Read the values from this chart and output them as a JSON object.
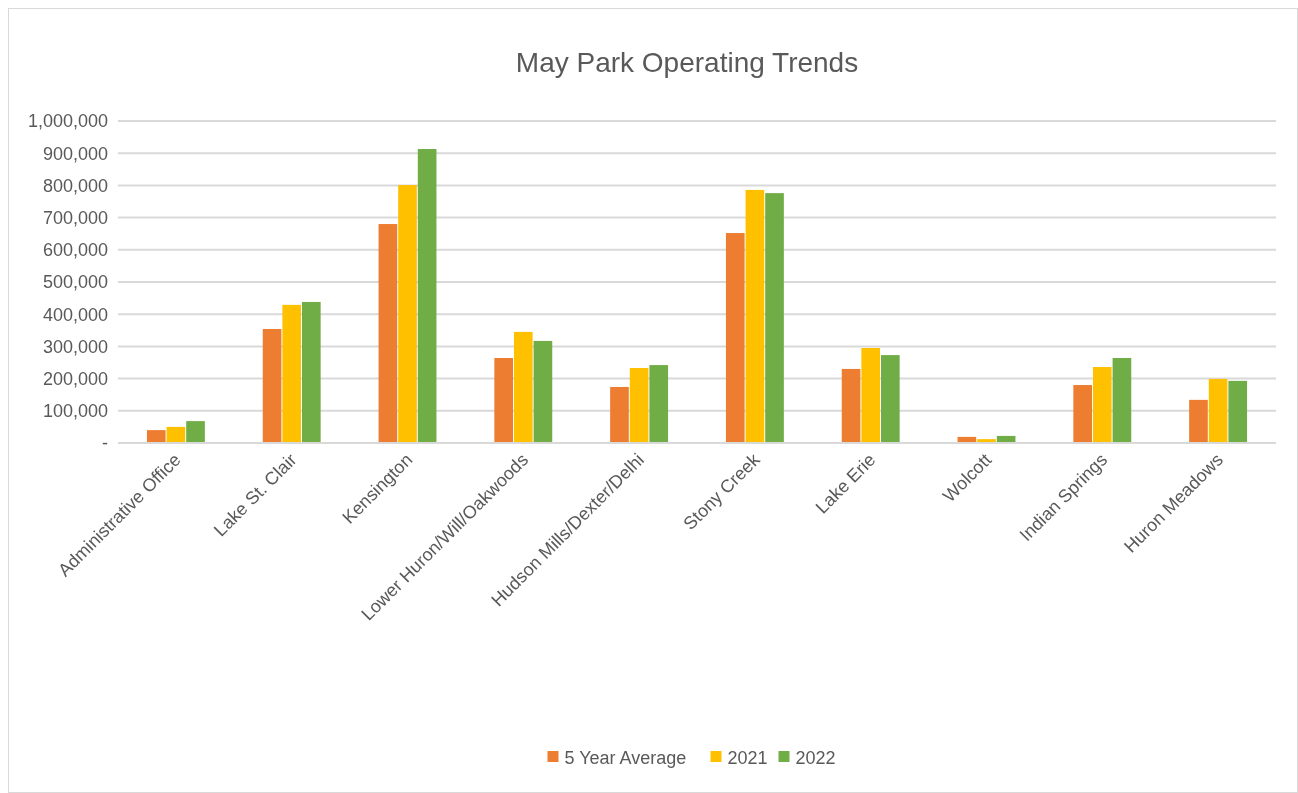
{
  "chart_data": {
    "type": "bar",
    "title": "May Park Operating Trends",
    "categories": [
      "Administrative Office",
      "Lake St. Clair",
      "Kensington",
      "Lower Huron/Will/Oakwoods",
      "Hudson Mills/Dexter/Delhi",
      "Stony Creek",
      "Lake Erie",
      "Wolcott",
      "Indian Springs",
      "Huron Meadows"
    ],
    "series": [
      {
        "name": "5 Year Average",
        "color": "#ed7d31",
        "values": [
          40000,
          354000,
          680000,
          264000,
          174000,
          652000,
          230000,
          19000,
          180000,
          134000
        ]
      },
      {
        "name": "2021",
        "color": "#ffc000",
        "values": [
          50000,
          429000,
          801000,
          345000,
          233000,
          786000,
          295000,
          12000,
          236000,
          199000
        ]
      },
      {
        "name": "2022",
        "color": "#70ad47",
        "values": [
          68000,
          438000,
          913000,
          317000,
          242000,
          776000,
          273000,
          22000,
          264000,
          193000
        ]
      }
    ],
    "ylim": [
      0,
      1000000
    ],
    "yticks": [
      {
        "value": 0,
        "label": "-"
      },
      {
        "value": 100000,
        "label": "100,000"
      },
      {
        "value": 200000,
        "label": "200,000"
      },
      {
        "value": 300000,
        "label": "300,000"
      },
      {
        "value": 400000,
        "label": "400,000"
      },
      {
        "value": 500000,
        "label": "500,000"
      },
      {
        "value": 600000,
        "label": "600,000"
      },
      {
        "value": 700000,
        "label": "700,000"
      },
      {
        "value": 800000,
        "label": "800,000"
      },
      {
        "value": 900000,
        "label": "900,000"
      },
      {
        "value": 1000000,
        "label": "1,000,000"
      }
    ],
    "grid": "y",
    "legend": "bottom"
  }
}
